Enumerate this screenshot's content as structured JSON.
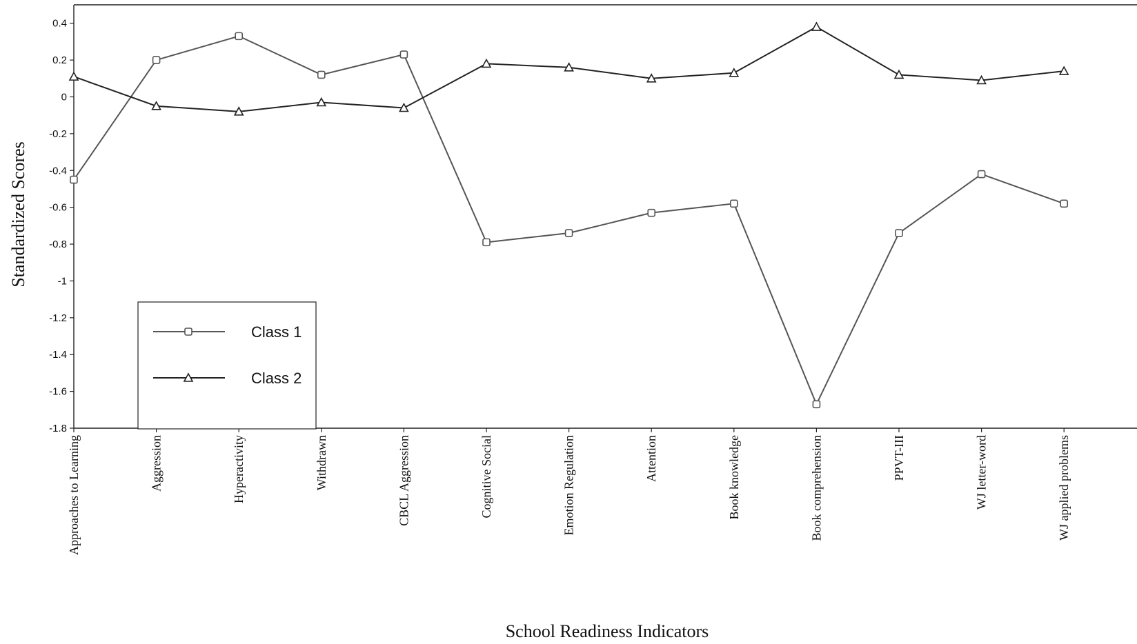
{
  "chart_data": {
    "type": "line",
    "title": "",
    "xlabel": "School Readiness Indicators",
    "ylabel": "Standardized Scores",
    "ylim": [
      -1.8,
      0.5
    ],
    "yticks": [
      0.4,
      0.2,
      0,
      -0.2,
      -0.4,
      -0.6,
      -0.8,
      -1,
      -1.2,
      -1.4,
      -1.6,
      -1.8
    ],
    "ytick_labels": [
      "0.4",
      "0.2",
      "0",
      "-0.2",
      "-0.4",
      "-0.6",
      "-0.8",
      "-1",
      "-1.2",
      "-1.4",
      "-1.6",
      "-1.8"
    ],
    "grid": false,
    "legend_position": "bottom-left",
    "categories": [
      "Approaches to Learning",
      "Aggression",
      "Hyperactivity",
      "Withdrawn",
      "CBCL Aggression",
      "Cognitive Social",
      "Emotion Regulation",
      "Attention",
      "Book knowledge",
      "Book comprehension",
      "PPVT-III",
      "WJ letter-word",
      "WJ applied problems"
    ],
    "series": [
      {
        "name": "Class 1",
        "marker": "square",
        "color": "#555555",
        "values": [
          -0.45,
          0.2,
          0.33,
          0.12,
          0.23,
          -0.79,
          -0.74,
          -0.63,
          -0.58,
          -1.67,
          -0.74,
          -0.42,
          -0.58
        ]
      },
      {
        "name": "Class 2",
        "marker": "triangle",
        "color": "#222222",
        "values": [
          0.11,
          -0.05,
          -0.08,
          -0.03,
          -0.06,
          0.18,
          0.16,
          0.1,
          0.13,
          0.38,
          0.12,
          0.09,
          0.14
        ]
      }
    ]
  }
}
